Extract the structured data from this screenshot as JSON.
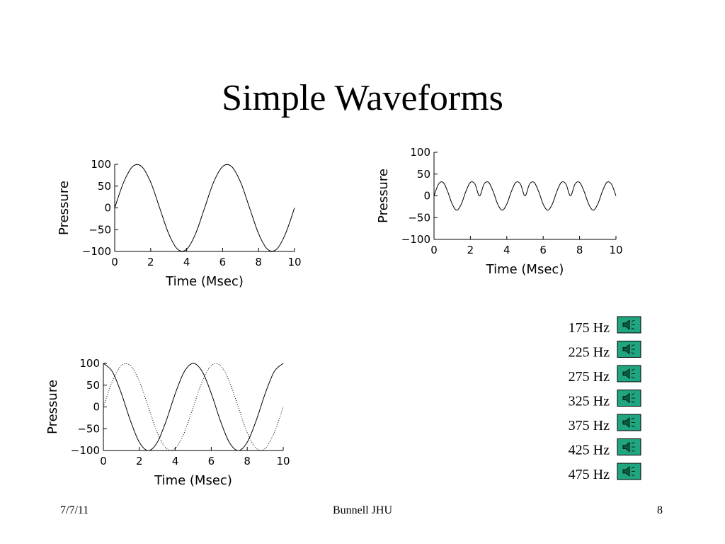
{
  "title": "Simple Waveforms",
  "chart_data": [
    {
      "type": "line",
      "x_label": "Time (Msec)",
      "y_label": "Pressure",
      "x": [
        0,
        0.5,
        1,
        1.5,
        2,
        2.5,
        3,
        3.5,
        4,
        4.5,
        5,
        5.5,
        6,
        6.5,
        7,
        7.5,
        8,
        8.5,
        9,
        9.5,
        10
      ],
      "series": [
        {
          "color": "#000000",
          "line_style": "solid",
          "values": [
            0,
            59,
            95,
            95,
            59,
            0,
            -59,
            -95,
            -95,
            -59,
            0,
            59,
            95,
            95,
            59,
            0,
            -59,
            -95,
            -95,
            -59,
            0
          ]
        }
      ],
      "xlim": [
        0,
        10
      ],
      "ylim": [
        -100,
        100
      ],
      "xticks": [
        0,
        2,
        4,
        6,
        8,
        10
      ],
      "yticks": [
        {
          "value": -100,
          "label": "−100"
        },
        {
          "value": -50,
          "label": "−50"
        },
        0,
        50,
        100
      ]
    },
    {
      "type": "line",
      "x_label": "Time (Msec)",
      "y_label": "Pressure",
      "x": [
        0,
        0.25,
        0.5,
        0.75,
        1,
        1.25,
        1.5,
        1.75,
        2,
        2.25,
        2.5,
        2.75,
        3,
        3.25,
        3.5,
        3.75,
        4,
        4.25,
        4.5,
        4.75,
        5,
        5.25,
        5.5,
        5.75,
        6,
        6.25,
        6.5,
        6.75,
        7,
        7.25,
        7.5,
        7.75,
        8,
        8.25,
        8.5,
        8.75,
        9,
        9.25,
        9.5,
        9.75,
        10
      ],
      "series": [
        {
          "color": "#000000",
          "line_style": "solid",
          "values": [
            0,
            27,
            31,
            10,
            -19,
            -33,
            -19,
            10,
            31,
            27,
            0,
            27,
            31,
            10,
            -19,
            -33,
            -19,
            10,
            31,
            27,
            0,
            27,
            31,
            10,
            -19,
            -33,
            -19,
            10,
            31,
            27,
            0,
            27,
            31,
            10,
            -19,
            -33,
            -19,
            10,
            31,
            27,
            0
          ]
        }
      ],
      "xlim": [
        0,
        10
      ],
      "ylim": [
        -100,
        100
      ],
      "xticks": [
        0,
        2,
        4,
        6,
        8,
        10
      ],
      "yticks": [
        {
          "value": -100,
          "label": "−100"
        },
        {
          "value": -50,
          "label": "−50"
        },
        0,
        50,
        100
      ]
    },
    {
      "type": "line",
      "x_label": "Time (Msec)",
      "y_label": "Pressure",
      "x": [
        0,
        0.5,
        1,
        1.5,
        2,
        2.5,
        3,
        3.5,
        4,
        4.5,
        5,
        5.5,
        6,
        6.5,
        7,
        7.5,
        8,
        8.5,
        9,
        9.5,
        10
      ],
      "series": [
        {
          "color": "#000000",
          "line_style": "solid",
          "values": [
            100,
            81,
            31,
            -31,
            -81,
            -100,
            -81,
            -31,
            31,
            81,
            100,
            81,
            31,
            -31,
            -81,
            -100,
            -81,
            -31,
            31,
            81,
            100
          ]
        },
        {
          "color": "#000000",
          "line_style": "dotted",
          "values": [
            0,
            59,
            95,
            95,
            59,
            0,
            -59,
            -95,
            -95,
            -59,
            0,
            59,
            95,
            95,
            59,
            0,
            -59,
            -95,
            -95,
            -59,
            0
          ]
        }
      ],
      "xlim": [
        0,
        10
      ],
      "ylim": [
        -100,
        100
      ],
      "xticks": [
        0,
        2,
        4,
        6,
        8,
        10
      ],
      "yticks": [
        {
          "value": -100,
          "label": "−100"
        },
        {
          "value": -50,
          "label": "−50"
        },
        0,
        50,
        100
      ]
    }
  ],
  "sounds": [
    "175 Hz",
    "225 Hz",
    "275 Hz",
    "325 Hz",
    "375 Hz",
    "425 Hz",
    "475 Hz"
  ],
  "footer": {
    "date": "7/7/11",
    "center": "Bunnell JHU",
    "page": "8"
  }
}
